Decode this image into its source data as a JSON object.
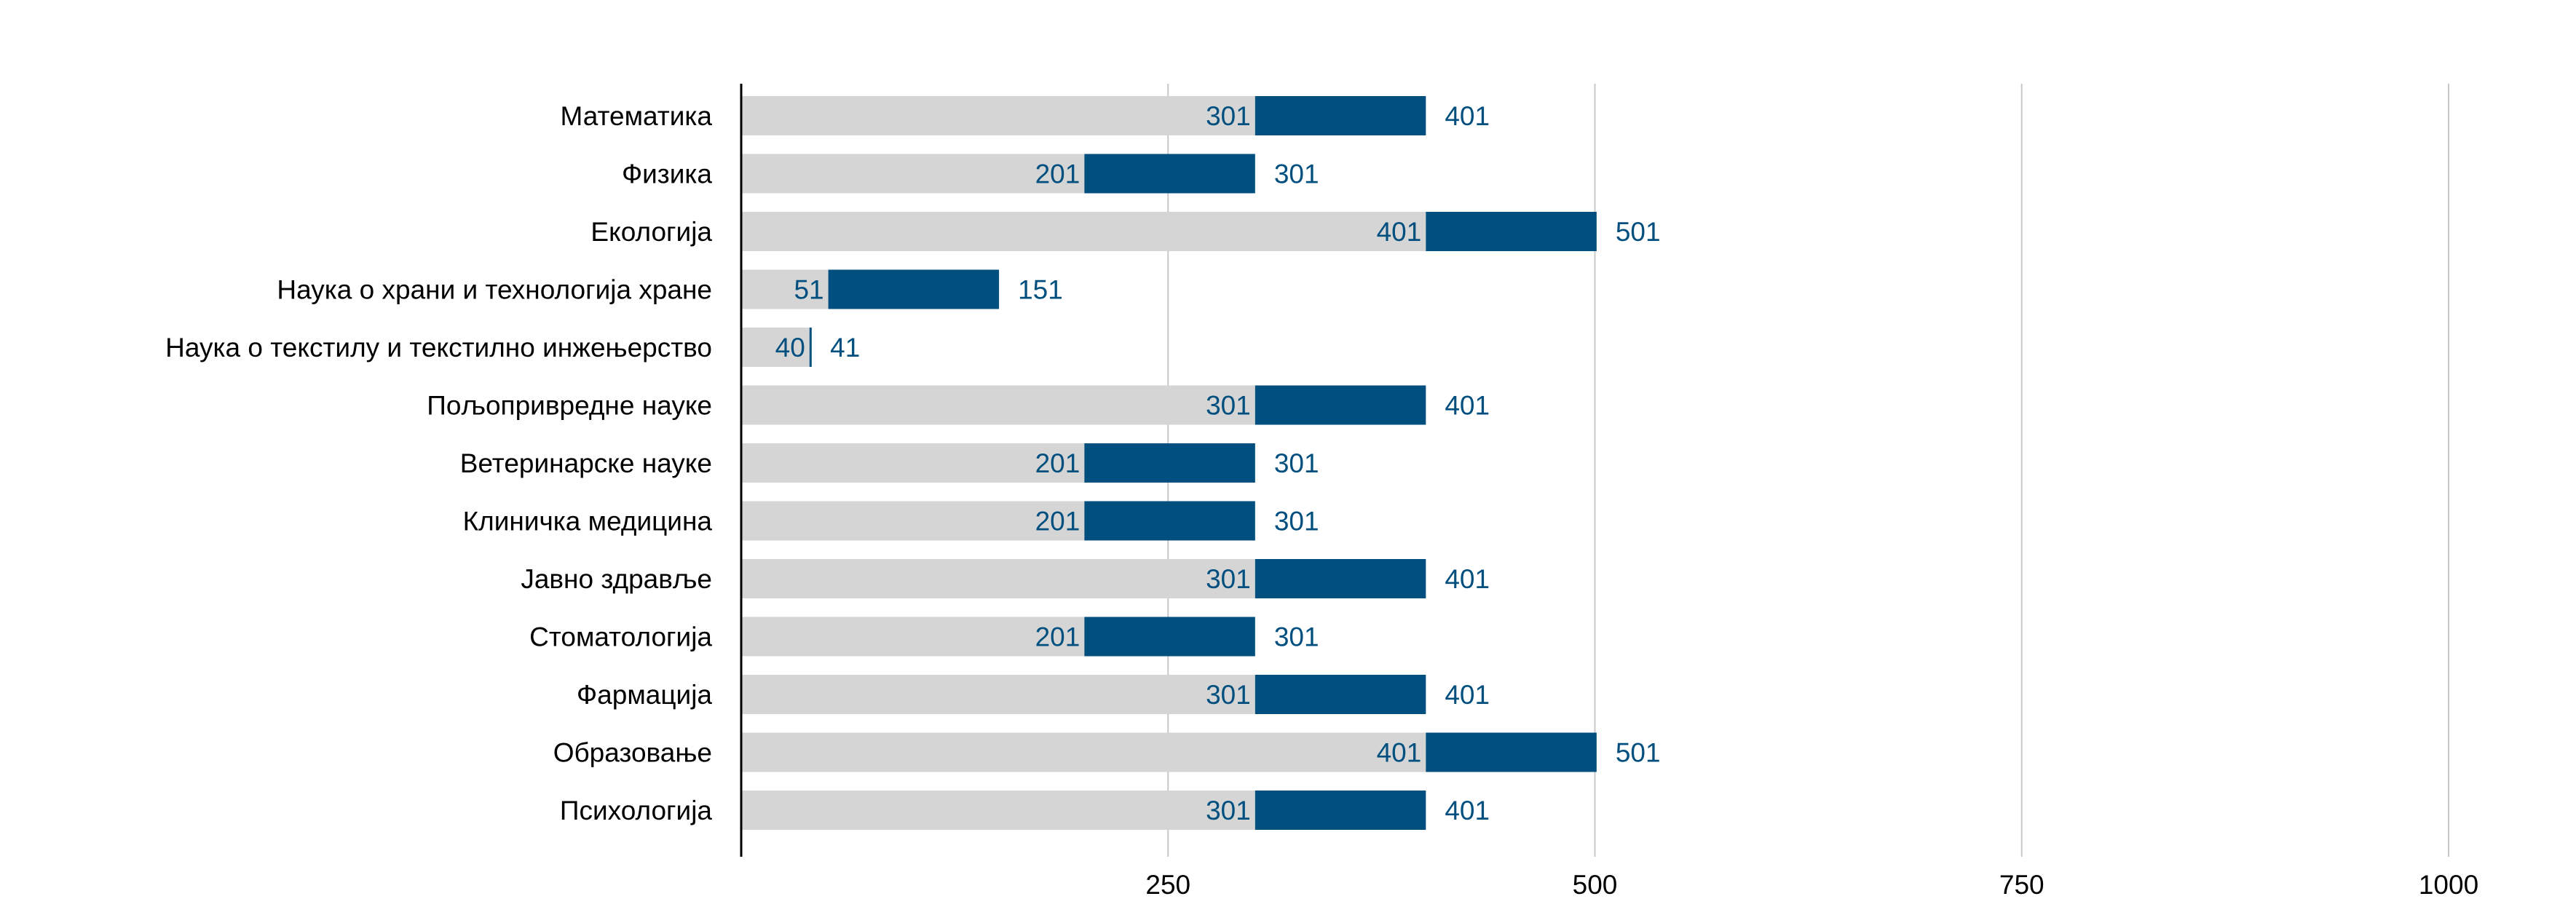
{
  "chart_data": {
    "type": "bar",
    "orientation": "horizontal",
    "stacked": true,
    "title": "",
    "xlabel": "",
    "ylabel": "",
    "xlim": [
      0,
      1000
    ],
    "xticks": [
      250,
      500,
      750,
      1000
    ],
    "grid": true,
    "categories": [
      "Математика",
      "Физика",
      "Екологија",
      "Наука о храни и технологија хране",
      "Наука о текстилу и текстилно инжењерство",
      "Пољопривредне науке",
      "Ветеринарске науке",
      "Клиничка медицина",
      "Јавно здравље",
      "Стоматологија",
      "Фармација",
      "Образовање",
      "Психологија"
    ],
    "series": [
      {
        "name": "start",
        "color": "#d5d5d5",
        "values": [
          301,
          201,
          401,
          51,
          40,
          301,
          201,
          201,
          301,
          201,
          301,
          401,
          301
        ]
      },
      {
        "name": "end",
        "color": "#004f7f",
        "values": [
          401,
          301,
          501,
          151,
          41,
          401,
          301,
          301,
          401,
          301,
          401,
          501,
          401
        ]
      }
    ],
    "label_color": "#004f7f"
  }
}
